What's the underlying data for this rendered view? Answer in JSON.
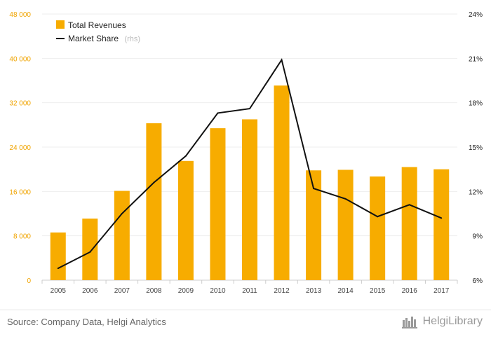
{
  "chart_data": {
    "type": "bar",
    "categories": [
      "2005",
      "2006",
      "2007",
      "2008",
      "2009",
      "2010",
      "2011",
      "2012",
      "2013",
      "2014",
      "2015",
      "2016",
      "2017"
    ],
    "series": [
      {
        "name": "Total Revenues",
        "type": "bar",
        "axis": "left",
        "color": "#f7ac00",
        "values": [
          8600,
          11100,
          16100,
          28300,
          21500,
          27400,
          29000,
          35100,
          19800,
          19900,
          18700,
          20400,
          20000
        ]
      },
      {
        "name": "Market Share",
        "type": "line",
        "axis": "right",
        "color": "#111111",
        "values": [
          6.8,
          7.9,
          10.5,
          12.6,
          14.4,
          17.3,
          17.6,
          20.9,
          12.2,
          11.5,
          10.3,
          11.1,
          10.2
        ]
      }
    ],
    "legend_rhs_note": "(rhs)",
    "yleft_lim": [
      0,
      48000
    ],
    "yleft_ticks": [
      "0",
      "8 000",
      "16 000",
      "24 000",
      "32 000",
      "40 000",
      "48 000"
    ],
    "yright_lim": [
      6,
      24
    ],
    "yright_ticks": [
      "6%",
      "9%",
      "12%",
      "15%",
      "18%",
      "21%",
      "24%"
    ],
    "legend_position": "top-left",
    "grid": true
  },
  "footer": {
    "source": "Source: Company Data, Helgi Analytics",
    "brand": "HelgiLibrary"
  }
}
